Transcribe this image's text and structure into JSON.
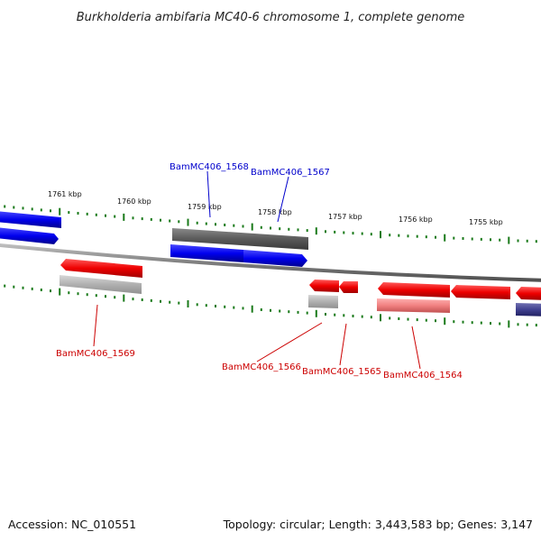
{
  "title": "Burkholderia ambifaria MC40-6 chromosome 1, complete genome",
  "footer": {
    "accession": "Accession: NC_010551",
    "summary": "Topology: circular; Length: 3,443,583 bp; Genes: 3,147"
  },
  "scale_labels": [
    "1761 kbp",
    "1760 kbp",
    "1759 kbp",
    "1758 kbp",
    "1757 kbp",
    "1756 kbp",
    "1755 kbp"
  ],
  "gene_labels": {
    "g1568": "BamMC406_1568",
    "g1567": "BamMC406_1567",
    "g1569": "BamMC406_1569",
    "g1566": "BamMC406_1566",
    "g1565": "BamMC406_1565",
    "g1564": "BamMC406_1564"
  },
  "colors": {
    "forward_strand": "#0a0aff",
    "reverse_strand": "#ff0000",
    "pseudo_or_rna": "#666666",
    "tick": "#1a7a1a",
    "backbone": "#808080",
    "forward_label": "#0000cc",
    "reverse_label": "#cc0000"
  }
}
